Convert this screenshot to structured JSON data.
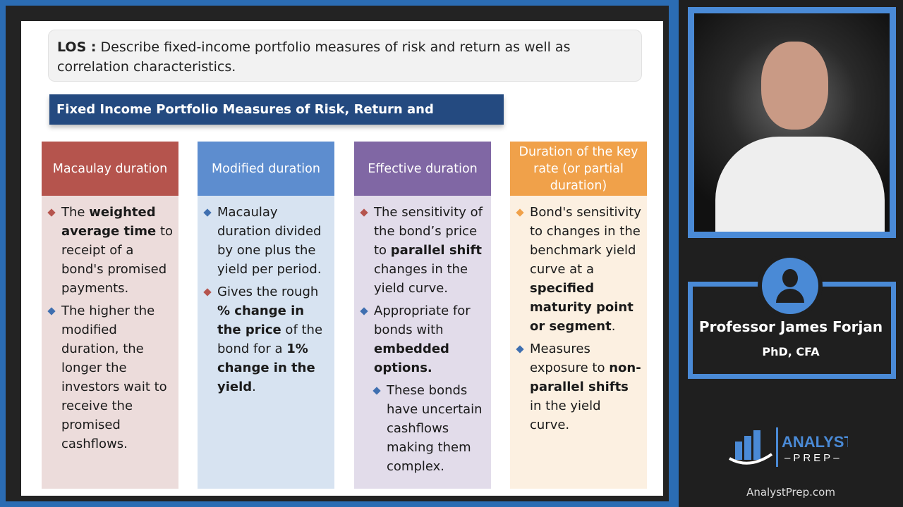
{
  "los": {
    "label": "LOS :",
    "text": " Describe fixed-income portfolio measures of risk and return as well as correlation characteristics."
  },
  "banner": "Fixed Income Portfolio Measures of Risk, Return and correlation",
  "columns": [
    {
      "title": "Macaulay duration",
      "header_color": "#b5544d",
      "body_color": "#ecdcdb",
      "bullets": [
        {
          "color": "#b5544d",
          "segments": [
            [
              "The ",
              0
            ],
            [
              "weighted average time",
              1
            ],
            [
              " to receipt of a bond's promised payments.",
              0
            ]
          ]
        },
        {
          "color": "#3f6fb0",
          "segments": [
            [
              "The higher the modified duration, the longer the investors wait to receive the promised cashflows.",
              0
            ]
          ]
        }
      ]
    },
    {
      "title": "Modified duration",
      "header_color": "#5d8dcf",
      "body_color": "#d7e3f1",
      "bullets": [
        {
          "color": "#3f6fb0",
          "segments": [
            [
              "Macaulay duration divided by one plus the yield per period.",
              0
            ]
          ]
        },
        {
          "color": "#b5544d",
          "segments": [
            [
              "Gives the rough ",
              0
            ],
            [
              "% change in the price",
              1
            ],
            [
              " of the bond for a ",
              0
            ],
            [
              "1% change in the yield",
              1
            ],
            [
              ".",
              0
            ]
          ]
        }
      ]
    },
    {
      "title": "Effective duration",
      "header_color": "#8067a4",
      "body_color": "#e2dcea",
      "bullets": [
        {
          "color": "#b5544d",
          "segments": [
            [
              "The sensitivity of the bond’s price to ",
              0
            ],
            [
              "parallel shift",
              1
            ],
            [
              " changes in the yield curve.",
              0
            ]
          ]
        },
        {
          "color": "#3f6fb0",
          "segments": [
            [
              "Appropriate for bonds with ",
              0
            ],
            [
              "embedded options.",
              1
            ]
          ]
        },
        {
          "color": "#3f6fb0",
          "sub": true,
          "segments": [
            [
              "These bonds have uncertain cashflows making them complex.",
              0
            ]
          ]
        }
      ]
    },
    {
      "title": "Duration of the key rate (or partial duration)",
      "header_color": "#f0a14a",
      "body_color": "#fcf0e1",
      "bullets": [
        {
          "color": "#f0a14a",
          "segments": [
            [
              "Bond's sensitivity to changes in the benchmark yield curve at a ",
              0
            ],
            [
              "specified maturity point or segment",
              1
            ],
            [
              ".",
              0
            ]
          ]
        },
        {
          "color": "#3f6fb0",
          "segments": [
            [
              "Measures exposure to ",
              0
            ],
            [
              "non-parallel shifts",
              1
            ],
            [
              " in the yield curve.",
              0
            ]
          ]
        }
      ]
    }
  ],
  "presenter": {
    "name": "Professor James Forjan",
    "credentials": "PhD, CFA"
  },
  "logo": {
    "line1": "ANALYST",
    "line2": "PREP"
  },
  "website": "AnalystPrep.com",
  "colors": {
    "frame_blue": "#2b6cb3",
    "accent": "#4a8ad6",
    "banner": "#244a80"
  }
}
